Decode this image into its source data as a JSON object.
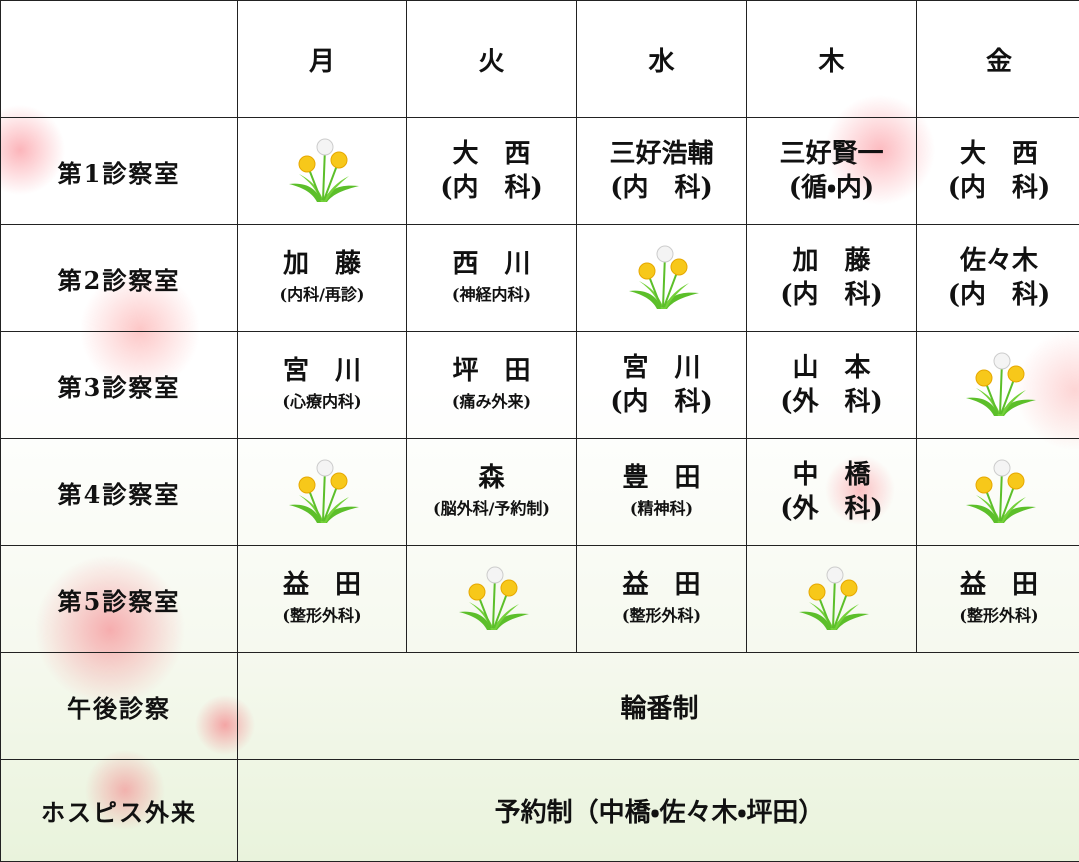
{
  "header": {
    "days": [
      "月",
      "火",
      "水",
      "木",
      "金"
    ]
  },
  "rows": [
    {
      "room": "第1診察室",
      "cells": [
        null,
        {
          "name": "大　西",
          "dept": "(内　科)"
        },
        {
          "name": "三好浩輔",
          "dept": "(内　科)"
        },
        {
          "name": "三好賢一",
          "dept": "(循・内)"
        },
        {
          "name": "大　西",
          "dept": "(内　科)"
        }
      ]
    },
    {
      "room": "第2診察室",
      "cells": [
        {
          "name": "加　藤",
          "dept": "(内科/再診)"
        },
        {
          "name": "西　川",
          "dept": "(神経内科)"
        },
        null,
        {
          "name": "加　藤",
          "dept": "(内　科)"
        },
        {
          "name": "佐々木",
          "dept": "(内　科)"
        }
      ]
    },
    {
      "room": "第3診察室",
      "cells": [
        {
          "name": "宮　川",
          "dept": "(心療内科)"
        },
        {
          "name": "坪　田",
          "dept": "(痛み外来)"
        },
        {
          "name": "宮　川",
          "dept": "(内　科)"
        },
        {
          "name": "山　本",
          "dept": "(外　科)"
        },
        null
      ]
    },
    {
      "room": "第4診察室",
      "cells": [
        null,
        {
          "name": "森",
          "dept": "(脳外科/予約制)"
        },
        {
          "name": "豊　田",
          "dept": "(精神科)"
        },
        {
          "name": "中　橋",
          "dept": "(外　科)"
        },
        null
      ]
    },
    {
      "room": "第5診察室",
      "cells": [
        {
          "name": "益　田",
          "dept": "(整形外科)"
        },
        null,
        {
          "name": "益　田",
          "dept": "(整形外科)"
        },
        null,
        {
          "name": "益　田",
          "dept": "(整形外科)"
        }
      ]
    }
  ],
  "afternoon": {
    "label": "午後診察",
    "value": "輪番制"
  },
  "hospice": {
    "label": "ホスピス外来",
    "value": "予約制（中橋・佐々木・坪田）"
  }
}
